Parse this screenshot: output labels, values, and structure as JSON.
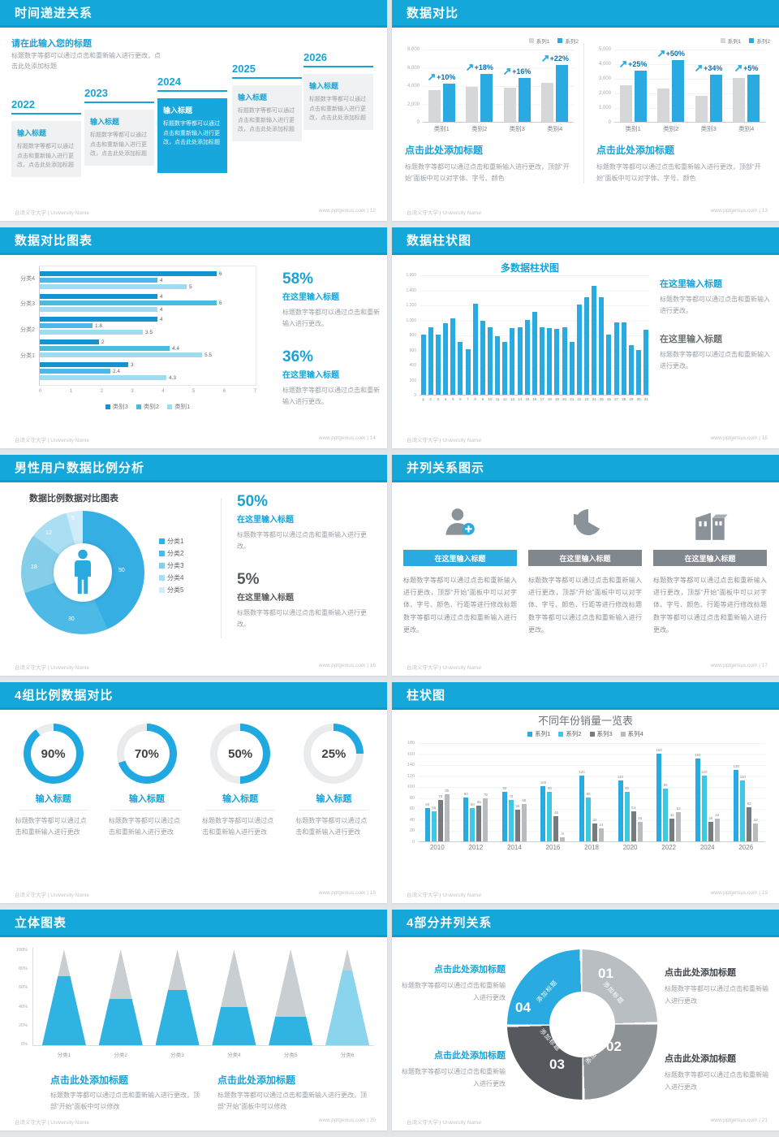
{
  "theme": {
    "header_blue": "#14a7da",
    "accent": "#18a3d8",
    "bar_blue": "#29abe2",
    "bar_gray": "#d5d7d9",
    "series2_cyan": "#3fc8e6",
    "series3_gray": "#767b80",
    "series4_gray": "#b9bcbf",
    "growth_text": "#0d6fae"
  },
  "footer": {
    "university": "台湾义守大学 | University Name",
    "site": "www.pptgenius.com"
  },
  "slides": {
    "s12": {
      "title": "时间递进关系",
      "page": "12",
      "footer_right": "www.pptgenius.com | 12",
      "heading": "请在此输入您的标题",
      "intro": "标题数字等都可以通过点击和重新输入进行更改，点击此处添加标题",
      "item_title": "输入标题",
      "item_body": "标题数字等都可以通过点击和重新输入进行更改，点击此处添加标题",
      "timeline": {
        "years": [
          "2022",
          "2023",
          "2024",
          "2025",
          "2026"
        ],
        "highlight": "2024"
      }
    },
    "s13": {
      "title": "数据对比",
      "page": "13",
      "footer_right": "www.pptgenius.com | 13",
      "block_title": "点击此处添加标题",
      "block_body": "标题数字等都可以通过点击和重新输入进行更改，顶部“开始”面板中可以对字体、字号、颜色",
      "chart_data": [
        {
          "type": "bar",
          "categories": [
            "类别1",
            "类别2",
            "类别3",
            "类别4"
          ],
          "ymax": 8000,
          "yticks": [
            "8,000",
            "6,000",
            "4,000",
            "2,000",
            "0"
          ],
          "series": [
            {
              "name": "系列1",
              "color": "#d5d7d9",
              "values": [
                3500,
                3800,
                3700,
                4300
              ]
            },
            {
              "name": "系列2",
              "color": "#29abe2",
              "values": [
                4200,
                5200,
                4800,
                6200
              ]
            }
          ],
          "growth": [
            "+10%",
            "+18%",
            "+16%",
            "+22%"
          ]
        },
        {
          "type": "bar",
          "categories": [
            "类别1",
            "类别2",
            "类别3",
            "类别4"
          ],
          "ymax": 5000,
          "yticks": [
            "5,000",
            "4,000",
            "3,000",
            "2,000",
            "1,000",
            "0"
          ],
          "series": [
            {
              "name": "系列1",
              "color": "#d5d7d9",
              "values": [
                2500,
                2300,
                1800,
                3000
              ]
            },
            {
              "name": "系列2",
              "color": "#29abe2",
              "values": [
                3500,
                4200,
                3200,
                3200
              ]
            }
          ],
          "growth": [
            "+25%",
            "+50%",
            "+34%",
            "+5%"
          ]
        }
      ]
    },
    "s14": {
      "title": "数据对比图表",
      "page": "14",
      "footer_right": "www.pptgenius.com | 14",
      "stats": [
        {
          "pct": "58%",
          "sub": "在这里输入标题",
          "body": "标题数字等都可以通过点击和重新输入进行更改。"
        },
        {
          "pct": "36%",
          "sub": "在这里输入标题",
          "body": "标题数字等都可以通过点击和重新输入进行更改。"
        }
      ],
      "chart_data": {
        "type": "bar",
        "orientation": "horizontal",
        "xmax": 7,
        "xticks": [
          "0",
          "1",
          "2",
          "3",
          "4",
          "5",
          "6",
          "7"
        ],
        "legend": [
          {
            "name": "类别3",
            "color": "#1593cf"
          },
          {
            "name": "类别2",
            "color": "#4cb9e3"
          },
          {
            "name": "类别1",
            "color": "#9edcf2"
          }
        ],
        "groups": [
          {
            "label": "分类4",
            "values": [
              6,
              4,
              5
            ]
          },
          {
            "label": "分类3",
            "values": [
              4,
              6,
              4
            ]
          },
          {
            "label": "分类2",
            "values": [
              4,
              1.8,
              3.5
            ]
          },
          {
            "label": "分类1",
            "values": [
              2,
              4.4,
              5.5
            ]
          },
          {
            "label": "",
            "values": [
              3,
              2.4,
              4.3
            ]
          }
        ]
      }
    },
    "s15": {
      "title": "数据柱状图",
      "page": "15",
      "footer_right": "www.pptgenius.com | 15",
      "chart_title": "多数据柱状图",
      "headings": [
        {
          "title": "在这里输入标题",
          "body": "标题数字等都可以通过点击和重新输入进行更改。"
        },
        {
          "title": "在这里输入标题",
          "body": "标题数字等都可以通过点击和重新输入进行更改。"
        }
      ],
      "chart_data": {
        "type": "bar",
        "ymax": 1600,
        "yticks": [
          "1,600",
          "1,400",
          "1,200",
          "1,000",
          "800",
          "600",
          "400",
          "200",
          "0"
        ],
        "x": [
          "1",
          "2",
          "3",
          "4",
          "5",
          "6",
          "7",
          "8",
          "9",
          "10",
          "11",
          "12",
          "13",
          "14",
          "15",
          "16",
          "17",
          "18",
          "19",
          "20",
          "21",
          "22",
          "23",
          "24",
          "25",
          "26",
          "27",
          "28",
          "29",
          "30",
          "31"
        ],
        "values": [
          800,
          900,
          800,
          950,
          1020,
          700,
          600,
          1210,
          980,
          900,
          780,
          700,
          890,
          900,
          990,
          1100,
          900,
          890,
          880,
          900,
          700,
          1200,
          1300,
          1450,
          1300,
          800,
          960,
          960,
          660,
          590,
          870
        ],
        "bar_color": "#29abe2"
      }
    },
    "s16": {
      "title": "男性用户数据比例分析",
      "page": "16",
      "footer_right": "www.pptgenius.com | 16",
      "chart_title": "数据比例数据对比图表",
      "stats": [
        {
          "pct": "50%",
          "sub": "在这里输入标题",
          "body": "标题数字等都可以通过点击和重新输入进行更改。"
        },
        {
          "pct": "5%",
          "sub": "在这里输入标题",
          "body": "标题数字等都可以通过点击和重新输入进行更改。"
        }
      ],
      "chart_data": {
        "type": "pie",
        "labels": [
          "分类1",
          "分类2",
          "分类3",
          "分类4",
          "分类5"
        ],
        "values": [
          50,
          30,
          18,
          12,
          5
        ],
        "colors": [
          "#35aee3",
          "#4db9e6",
          "#85ceea",
          "#aadef2",
          "#cfecf8"
        ]
      }
    },
    "s17": {
      "title": "并列关系图示",
      "page": "17",
      "footer_right": "www.pptgenius.com | 17",
      "cols": [
        {
          "title": "在这里输入标题",
          "body": "标题数字等都可以通过点击和重新输入进行更改，顶部“开始”面板中可以对字体、字号、颜色、行距等进行修改标题数字等都可以通过点击和重新输入进行更改。"
        },
        {
          "title": "在这里输入标题",
          "body": "标题数字等都可以通过点击和重新输入进行更改，顶部“开始”面板中可以对字体、字号、颜色、行距等进行修改标题数字等都可以通过点击和重新输入进行更改。"
        },
        {
          "title": "在这里输入标题",
          "body": "标题数字等都可以通过点击和重新输入进行更改，顶部“开始”面板中可以对字体、字号、颜色、行距等进行修改标题数字等都可以通过点击和重新输入进行更改。"
        }
      ]
    },
    "s18": {
      "title": "4组比例数据对比",
      "page": "18",
      "footer_right": "www.pptgenius.com | 18",
      "item_title": "输入标题",
      "item_body": "标题数字等都可以通过点击和重新输入进行更改",
      "chart_data": {
        "type": "pie",
        "values": [
          90,
          70,
          50,
          25
        ],
        "labels": [
          "90%",
          "70%",
          "50%",
          "25%"
        ],
        "ring_color": "#1fa9e0"
      }
    },
    "s19": {
      "title": "柱状图",
      "page": "19",
      "footer_right": "www.pptgenius.com | 19",
      "chart_title": "不同年份销量一览表",
      "chart_data": {
        "type": "bar",
        "categories": [
          "2010",
          "2012",
          "2014",
          "2016",
          "2018",
          "2020",
          "2022",
          "2024",
          "2026"
        ],
        "ymax": 180,
        "yticks": [
          "180",
          "160",
          "140",
          "120",
          "100",
          "80",
          "60",
          "40",
          "20",
          "0"
        ],
        "series": [
          {
            "name": "系列1",
            "color": "#29abe2",
            "values": [
              60,
              80,
              90,
              100,
              120,
              110,
              160,
              150,
              130
            ]
          },
          {
            "name": "系列2",
            "color": "#3fc8e6",
            "values": [
              55,
              60,
              75,
              90,
              80,
              90,
              96,
              120,
              110
            ]
          },
          {
            "name": "系列3",
            "color": "#767b80",
            "values": [
              75,
              65,
              58,
              46,
              32,
              54,
              42,
              36,
              62
            ]
          },
          {
            "name": "系列4",
            "color": "#b9bcbf",
            "values": [
              85,
              78,
              68,
              8,
              24,
              36,
              53,
              42,
              32
            ]
          }
        ]
      }
    },
    "s20": {
      "title": "立体图表",
      "page": "20",
      "footer_right": "www.pptgenius.com | 20",
      "block_title": "点击此处添加标题",
      "block_body": "标题数字等都可以通过点击和重新输入进行更改，顶部“开始”面板中可以修改",
      "chart_data": {
        "type": "bar",
        "style": "cone",
        "yticks": [
          "100%",
          "80%",
          "60%",
          "40%",
          "20%",
          "0%"
        ],
        "categories": [
          "分类1",
          "分类2",
          "分类3",
          "分类4",
          "分类5",
          "分类6"
        ],
        "values_pct": [
          72,
          48,
          58,
          40,
          30,
          78
        ],
        "colors": [
          "#2fb3e2",
          "#2fb3e2",
          "#2fb3e2",
          "#2fb3e2",
          "#2fb3e2",
          "#8ad4ee"
        ]
      }
    },
    "s21": {
      "title": "4部分并列关系",
      "page": "21",
      "footer_right": "www.pptgenius.com | 21",
      "numbers": [
        "01",
        "02",
        "03",
        "04"
      ],
      "segment_label": "添加标题",
      "blocks": [
        {
          "title": "点击此处添加标题",
          "body": "标题数字等都可以通过点击和重新输入进行更改"
        },
        {
          "title": "点击此处添加标题",
          "body": "标题数字等都可以通过点击和重新输入进行更改"
        },
        {
          "title": "点击此处添加标题",
          "body": "标题数字等都可以通过点击和重新输入进行更改"
        },
        {
          "title": "点击此处添加标题",
          "body": "标题数字等都可以通过点击和重新输入进行更改"
        }
      ]
    }
  }
}
